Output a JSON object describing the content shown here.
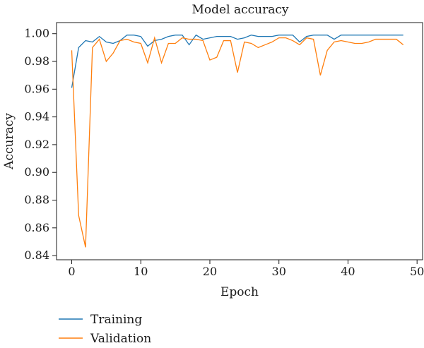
{
  "chart_data": {
    "type": "line",
    "title": "Model accuracy",
    "xlabel": "Epoch",
    "ylabel": "Accuracy",
    "xlim": [
      -2.2,
      50.8
    ],
    "ylim": [
      0.837,
      1.008
    ],
    "xticks": [
      0,
      10,
      20,
      30,
      40,
      50
    ],
    "yticks": [
      0.84,
      0.86,
      0.88,
      0.9,
      0.92,
      0.94,
      0.96,
      0.98,
      1.0
    ],
    "ytick_labels": [
      "0.84",
      "0.86",
      "0.88",
      "0.90",
      "0.92",
      "0.94",
      "0.96",
      "0.98",
      "1.00"
    ],
    "grid": false,
    "legend_position": "bottom-left",
    "series": [
      {
        "name": "Training",
        "color": "#1f77b4",
        "x": [
          0,
          1,
          2,
          3,
          4,
          5,
          6,
          7,
          8,
          9,
          10,
          11,
          12,
          13,
          14,
          15,
          16,
          17,
          18,
          19,
          20,
          21,
          22,
          23,
          24,
          25,
          26,
          27,
          28,
          29,
          30,
          31,
          32,
          33,
          34,
          35,
          36,
          37,
          38,
          39,
          40,
          41,
          42,
          43,
          44,
          45,
          46,
          47,
          48
        ],
        "values": [
          0.961,
          0.99,
          0.995,
          0.994,
          0.998,
          0.994,
          0.993,
          0.995,
          0.999,
          0.999,
          0.998,
          0.991,
          0.995,
          0.996,
          0.998,
          0.999,
          0.999,
          0.992,
          0.999,
          0.996,
          0.997,
          0.998,
          0.998,
          0.998,
          0.996,
          0.997,
          0.999,
          0.998,
          0.998,
          0.998,
          0.999,
          0.999,
          0.999,
          0.994,
          0.998,
          0.999,
          0.999,
          0.999,
          0.996,
          0.999,
          0.999,
          0.999,
          0.999,
          0.999,
          0.999,
          0.999,
          0.999,
          0.999,
          0.999
        ]
      },
      {
        "name": "Validation",
        "color": "#ff7f0e",
        "x": [
          0,
          1,
          2,
          3,
          4,
          5,
          6,
          7,
          8,
          9,
          10,
          11,
          12,
          13,
          14,
          15,
          16,
          17,
          18,
          19,
          20,
          21,
          22,
          23,
          24,
          25,
          26,
          27,
          28,
          29,
          30,
          31,
          32,
          33,
          34,
          35,
          36,
          37,
          38,
          39,
          40,
          41,
          42,
          43,
          44,
          45,
          46,
          47,
          48
        ],
        "values": [
          0.988,
          0.869,
          0.846,
          0.99,
          0.996,
          0.98,
          0.986,
          0.995,
          0.996,
          0.994,
          0.993,
          0.979,
          0.997,
          0.979,
          0.993,
          0.993,
          0.997,
          0.996,
          0.996,
          0.995,
          0.981,
          0.983,
          0.995,
          0.995,
          0.972,
          0.994,
          0.993,
          0.99,
          0.992,
          0.994,
          0.997,
          0.997,
          0.995,
          0.992,
          0.997,
          0.996,
          0.97,
          0.988,
          0.994,
          0.995,
          0.994,
          0.993,
          0.993,
          0.994,
          0.996,
          0.996,
          0.996,
          0.996,
          0.992
        ]
      }
    ]
  }
}
